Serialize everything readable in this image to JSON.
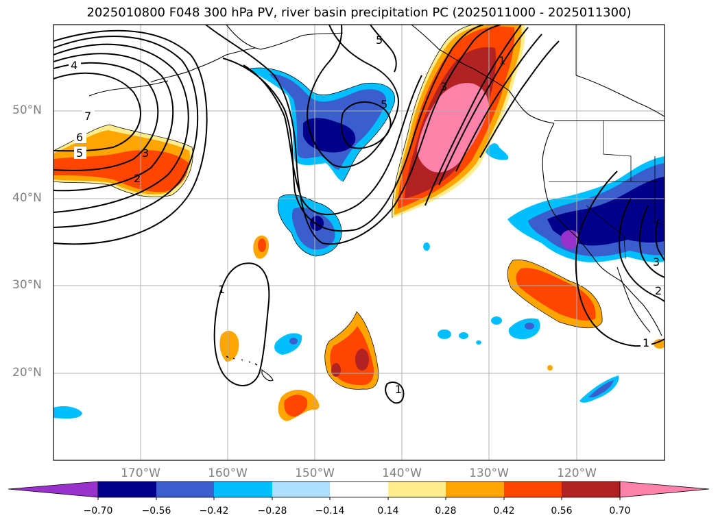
{
  "title": "2025010800 F048 300 hPa PV, river basin precipitation PC (2025011000 - 2025011300)",
  "lat_labels": [
    "50°N",
    "40°N",
    "30°N",
    "20°N"
  ],
  "lon_labels": [
    "170°W",
    "160°W",
    "150°W",
    "140°W",
    "130°W",
    "120°W"
  ],
  "contour_labels": [
    "4",
    "7",
    "6",
    "5",
    "3",
    "2",
    "5",
    "5",
    "1",
    "3",
    "1",
    "1",
    "1",
    "2",
    "3"
  ],
  "colorbar": {
    "ticks": [
      "−0.70",
      "−0.56",
      "−0.42",
      "−0.28",
      "−0.14",
      "0.14",
      "0.28",
      "0.42",
      "0.56",
      "0.70"
    ],
    "colors": [
      "#9932CC",
      "#00008B",
      "#3A5FCD",
      "#00BFFF",
      "#ADDFFF",
      "#FFFFFF",
      "#FFEC8B",
      "#FFA500",
      "#FF4500",
      "#B22222",
      "#FF82AB"
    ]
  }
}
